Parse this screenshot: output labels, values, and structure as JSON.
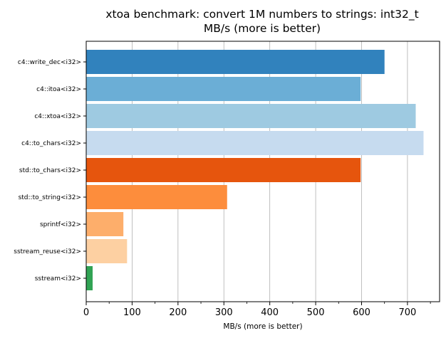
{
  "chart_data": {
    "type": "bar",
    "orientation": "horizontal",
    "title": "xtoa benchmark: convert 1M numbers to strings: int32_t",
    "subtitle": "MB/s (more is better)",
    "xlabel": "MB/s (more is better)",
    "ylabel": "",
    "xlim": [
      0,
      770
    ],
    "xticks": [
      0,
      100,
      200,
      300,
      400,
      500,
      600,
      700
    ],
    "grid": "vertical",
    "categories": [
      "c4::write_dec<i32>",
      "c4::itoa<i32>",
      "c4::xtoa<i32>",
      "c4::to_chars<i32>",
      "std::to_chars<i32>",
      "std::to_string<i32>",
      "sprintf<i32>",
      "sstream_reuse<i32>",
      "sstream<i32>"
    ],
    "values": [
      650,
      598,
      718,
      735,
      598,
      307,
      81,
      89,
      14
    ],
    "colors": [
      "#3182bd",
      "#6baed6",
      "#9ecae1",
      "#c6dbef",
      "#e6550d",
      "#fd8d3c",
      "#fdae6b",
      "#fdd0a2",
      "#31a354"
    ]
  }
}
